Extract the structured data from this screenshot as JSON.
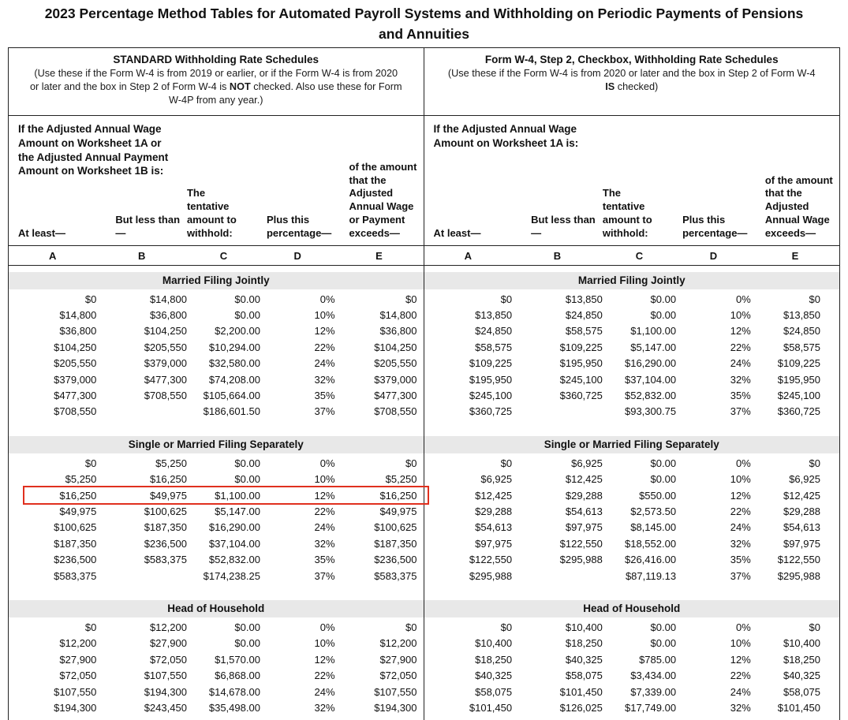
{
  "page": {
    "title": "2023 Percentage Method Tables for Automated Payroll Systems and Withholding on Periodic Payments of Pensions and Annuities"
  },
  "colors": {
    "highlight_red": "#e0301e",
    "section_band_gray": "#e8e8e8"
  },
  "left": {
    "header": {
      "title": "STANDARD Withholding Rate Schedules",
      "note_before": "(Use these if the Form W-4 is from 2019 or earlier, or if the Form W-4 is from 2020 or later and the box in Step 2 of Form W-4 is ",
      "note_bold": "NOT",
      "note_after": " checked. Also use these for Form W-4P from any year.)"
    },
    "intro": "If the Adjusted Annual Wage Amount on Worksheet 1A or the Adjusted Annual Payment Amount on Worksheet 1B is:",
    "captions": {
      "a": "At least—",
      "b": "But less than—",
      "c": "The tentative amount to withhold:",
      "d": "Plus this percentage—",
      "e": "of the amount that the Adjusted Annual Wage or Payment exceeds—"
    },
    "letters": [
      "A",
      "B",
      "C",
      "D",
      "E"
    ],
    "sections": [
      {
        "label": "Married Filing Jointly",
        "rows": [
          {
            "cells": [
              "$0",
              "$14,800",
              "$0.00",
              "0%",
              "$0"
            ]
          },
          {
            "cells": [
              "$14,800",
              "$36,800",
              "$0.00",
              "10%",
              "$14,800"
            ]
          },
          {
            "cells": [
              "$36,800",
              "$104,250",
              "$2,200.00",
              "12%",
              "$36,800"
            ]
          },
          {
            "cells": [
              "$104,250",
              "$205,550",
              "$10,294.00",
              "22%",
              "$104,250"
            ]
          },
          {
            "cells": [
              "$205,550",
              "$379,000",
              "$32,580.00",
              "24%",
              "$205,550"
            ]
          },
          {
            "cells": [
              "$379,000",
              "$477,300",
              "$74,208.00",
              "32%",
              "$379,000"
            ]
          },
          {
            "cells": [
              "$477,300",
              "$708,550",
              "$105,664.00",
              "35%",
              "$477,300"
            ]
          },
          {
            "cells": [
              "$708,550",
              "",
              "$186,601.50",
              "37%",
              "$708,550"
            ]
          }
        ]
      },
      {
        "label": "Single or Married Filing Separately",
        "rows": [
          {
            "cells": [
              "$0",
              "$5,250",
              "$0.00",
              "0%",
              "$0"
            ]
          },
          {
            "cells": [
              "$5,250",
              "$16,250",
              "$0.00",
              "10%",
              "$5,250"
            ]
          },
          {
            "cells": [
              "$16,250",
              "$49,975",
              "$1,100.00",
              "12%",
              "$16,250"
            ],
            "highlight": true
          },
          {
            "cells": [
              "$49,975",
              "$100,625",
              "$5,147.00",
              "22%",
              "$49,975"
            ]
          },
          {
            "cells": [
              "$100,625",
              "$187,350",
              "$16,290.00",
              "24%",
              "$100,625"
            ]
          },
          {
            "cells": [
              "$187,350",
              "$236,500",
              "$37,104.00",
              "32%",
              "$187,350"
            ]
          },
          {
            "cells": [
              "$236,500",
              "$583,375",
              "$52,832.00",
              "35%",
              "$236,500"
            ]
          },
          {
            "cells": [
              "$583,375",
              "",
              "$174,238.25",
              "37%",
              "$583,375"
            ]
          }
        ]
      },
      {
        "label": "Head of Household",
        "rows": [
          {
            "cells": [
              "$0",
              "$12,200",
              "$0.00",
              "0%",
              "$0"
            ]
          },
          {
            "cells": [
              "$12,200",
              "$27,900",
              "$0.00",
              "10%",
              "$12,200"
            ]
          },
          {
            "cells": [
              "$27,900",
              "$72,050",
              "$1,570.00",
              "12%",
              "$27,900"
            ]
          },
          {
            "cells": [
              "$72,050",
              "$107,550",
              "$6,868.00",
              "22%",
              "$72,050"
            ]
          },
          {
            "cells": [
              "$107,550",
              "$194,300",
              "$14,678.00",
              "24%",
              "$107,550"
            ]
          },
          {
            "cells": [
              "$194,300",
              "$243,450",
              "$35,498.00",
              "32%",
              "$194,300"
            ]
          }
        ]
      }
    ]
  },
  "right": {
    "header": {
      "title": "Form W-4, Step 2, Checkbox, Withholding Rate Schedules",
      "note_before": "(Use these if the Form W-4 is from 2020 or later and the box in Step 2 of Form W-4 ",
      "note_bold": "IS",
      "note_after": " checked)"
    },
    "intro": "If the Adjusted Annual Wage Amount on Worksheet 1A is:",
    "captions": {
      "a": "At least—",
      "b": "But less than—",
      "c": "The tentative amount to withhold:",
      "d": "Plus this percentage—",
      "e": "of the amount that the Adjusted Annual Wage exceeds—"
    },
    "letters": [
      "A",
      "B",
      "C",
      "D",
      "E"
    ],
    "sections": [
      {
        "label": "Married Filing Jointly",
        "rows": [
          {
            "cells": [
              "$0",
              "$13,850",
              "$0.00",
              "0%",
              "$0"
            ]
          },
          {
            "cells": [
              "$13,850",
              "$24,850",
              "$0.00",
              "10%",
              "$13,850"
            ]
          },
          {
            "cells": [
              "$24,850",
              "$58,575",
              "$1,100.00",
              "12%",
              "$24,850"
            ]
          },
          {
            "cells": [
              "$58,575",
              "$109,225",
              "$5,147.00",
              "22%",
              "$58,575"
            ]
          },
          {
            "cells": [
              "$109,225",
              "$195,950",
              "$16,290.00",
              "24%",
              "$109,225"
            ]
          },
          {
            "cells": [
              "$195,950",
              "$245,100",
              "$37,104.00",
              "32%",
              "$195,950"
            ]
          },
          {
            "cells": [
              "$245,100",
              "$360,725",
              "$52,832.00",
              "35%",
              "$245,100"
            ]
          },
          {
            "cells": [
              "$360,725",
              "",
              "$93,300.75",
              "37%",
              "$360,725"
            ]
          }
        ]
      },
      {
        "label": "Single or Married Filing Separately",
        "rows": [
          {
            "cells": [
              "$0",
              "$6,925",
              "$0.00",
              "0%",
              "$0"
            ]
          },
          {
            "cells": [
              "$6,925",
              "$12,425",
              "$0.00",
              "10%",
              "$6,925"
            ]
          },
          {
            "cells": [
              "$12,425",
              "$29,288",
              "$550.00",
              "12%",
              "$12,425"
            ]
          },
          {
            "cells": [
              "$29,288",
              "$54,613",
              "$2,573.50",
              "22%",
              "$29,288"
            ]
          },
          {
            "cells": [
              "$54,613",
              "$97,975",
              "$8,145.00",
              "24%",
              "$54,613"
            ]
          },
          {
            "cells": [
              "$97,975",
              "$122,550",
              "$18,552.00",
              "32%",
              "$97,975"
            ]
          },
          {
            "cells": [
              "$122,550",
              "$295,988",
              "$26,416.00",
              "35%",
              "$122,550"
            ]
          },
          {
            "cells": [
              "$295,988",
              "",
              "$87,119.13",
              "37%",
              "$295,988"
            ]
          }
        ]
      },
      {
        "label": "Head of Household",
        "rows": [
          {
            "cells": [
              "$0",
              "$10,400",
              "$0.00",
              "0%",
              "$0"
            ]
          },
          {
            "cells": [
              "$10,400",
              "$18,250",
              "$0.00",
              "10%",
              "$10,400"
            ]
          },
          {
            "cells": [
              "$18,250",
              "$40,325",
              "$785.00",
              "12%",
              "$18,250"
            ]
          },
          {
            "cells": [
              "$40,325",
              "$58,075",
              "$3,434.00",
              "22%",
              "$40,325"
            ]
          },
          {
            "cells": [
              "$58,075",
              "$101,450",
              "$7,339.00",
              "24%",
              "$58,075"
            ]
          },
          {
            "cells": [
              "$101,450",
              "$126,025",
              "$17,749.00",
              "32%",
              "$101,450"
            ]
          }
        ]
      }
    ]
  }
}
